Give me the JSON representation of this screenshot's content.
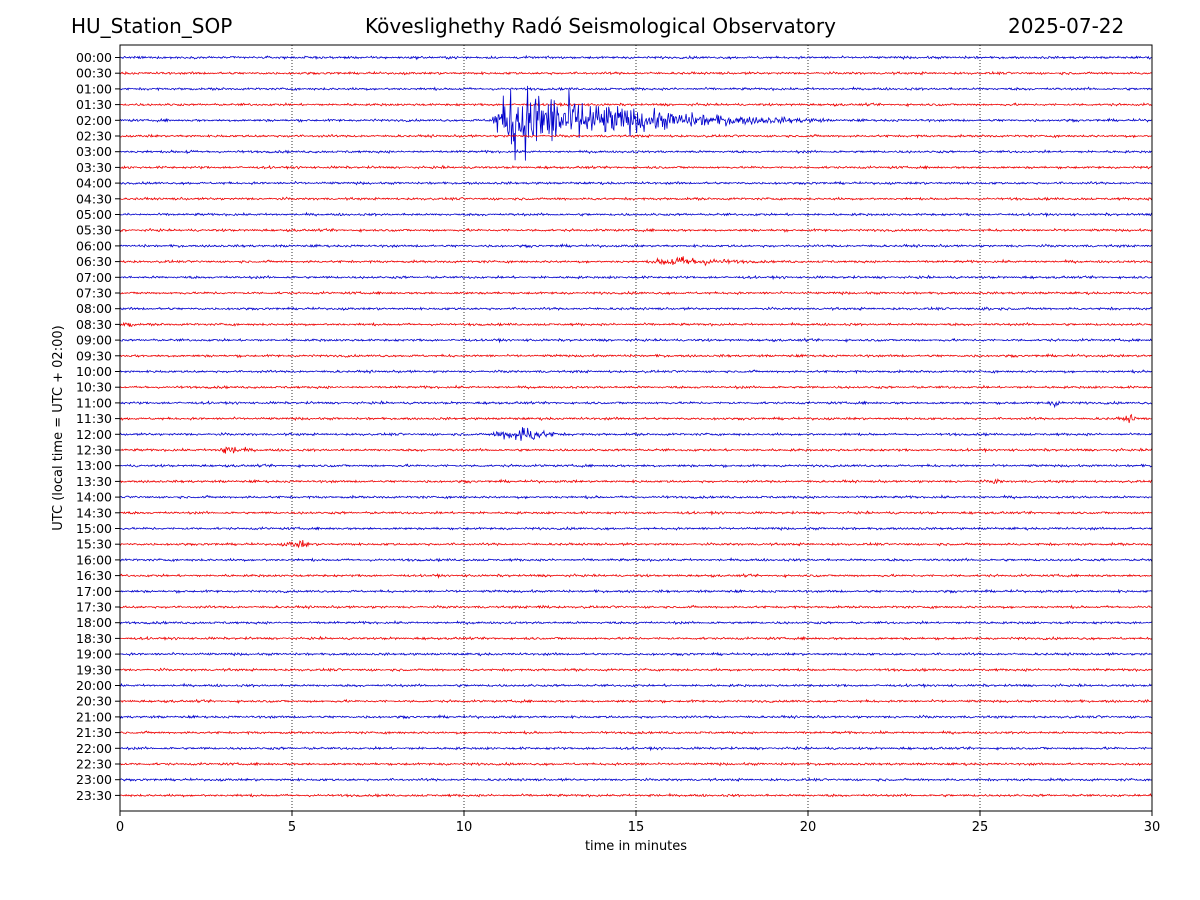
{
  "header": {
    "station": "HU_Station_SOP",
    "title": "Köveslighethy Radó Seismological Observatory",
    "date": "2025-07-22"
  },
  "chart_data": {
    "type": "line",
    "title": "Köveslighethy Radó Seismological Observatory",
    "xlabel": "time in minutes",
    "ylabel": "UTC (local time = UTC + 02:00)",
    "xlim": [
      0,
      30
    ],
    "xticks": [
      0,
      5,
      10,
      15,
      20,
      25,
      30
    ],
    "grid": "vertical dotted at x ticks",
    "row_labels": [
      "00:00",
      "00:30",
      "01:00",
      "01:30",
      "02:00",
      "02:30",
      "03:00",
      "03:30",
      "04:00",
      "04:30",
      "05:00",
      "05:30",
      "06:00",
      "06:30",
      "07:00",
      "07:30",
      "08:00",
      "08:30",
      "09:00",
      "09:30",
      "10:00",
      "10:30",
      "11:00",
      "11:30",
      "12:00",
      "12:30",
      "13:00",
      "13:30",
      "14:00",
      "14:30",
      "15:00",
      "15:30",
      "16:00",
      "16:30",
      "17:00",
      "17:30",
      "18:00",
      "18:30",
      "19:00",
      "19:30",
      "20:00",
      "20:30",
      "21:00",
      "21:30",
      "22:00",
      "22:30",
      "23:00",
      "23:30"
    ],
    "colors": [
      "#0000cc",
      "#ee0000"
    ],
    "noise_level": 0.12,
    "events": [
      {
        "row": "02:00",
        "start": 10.7,
        "peak": 11.5,
        "end": 20.5,
        "amplitude": 4.5
      },
      {
        "row": "02:00",
        "start": 19.3,
        "peak": 19.6,
        "end": 20.2,
        "amplitude": 0.4
      },
      {
        "row": "03:00",
        "start": 1.7,
        "peak": 2.0,
        "end": 2.7,
        "amplitude": 0.35
      },
      {
        "row": "06:30",
        "start": 15.2,
        "peak": 16.2,
        "end": 20.5,
        "amplitude": 0.7
      },
      {
        "row": "08:00",
        "start": 24.8,
        "peak": 25.3,
        "end": 25.8,
        "amplitude": 0.35
      },
      {
        "row": "08:30",
        "start": 0.0,
        "peak": 0.2,
        "end": 0.8,
        "amplitude": 0.6
      },
      {
        "row": "11:00",
        "start": 26.8,
        "peak": 27.2,
        "end": 28.0,
        "amplitude": 0.45
      },
      {
        "row": "11:30",
        "start": 28.8,
        "peak": 29.4,
        "end": 30.0,
        "amplitude": 0.45
      },
      {
        "row": "12:00",
        "start": 10.5,
        "peak": 11.8,
        "end": 13.5,
        "amplitude": 1.1
      },
      {
        "row": "12:30",
        "start": 2.8,
        "peak": 3.1,
        "end": 4.5,
        "amplitude": 0.8
      },
      {
        "row": "13:30",
        "start": 25.2,
        "peak": 25.5,
        "end": 26.0,
        "amplitude": 0.4
      },
      {
        "row": "15:30",
        "start": 4.3,
        "peak": 5.4,
        "end": 5.7,
        "amplitude": 0.5
      },
      {
        "row": "17:30",
        "start": 12.0,
        "peak": 12.3,
        "end": 12.8,
        "amplitude": 0.4
      },
      {
        "row": "23:30",
        "start": 15.2,
        "peak": 15.5,
        "end": 16.0,
        "amplitude": 0.3
      }
    ]
  }
}
